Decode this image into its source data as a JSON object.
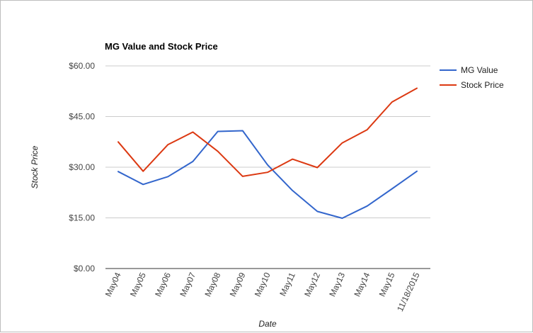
{
  "chart_data": {
    "type": "line",
    "title": "MG Value and Stock Price",
    "xlabel": "Date",
    "ylabel": "Stock Price",
    "categories": [
      "May04",
      "May05",
      "May06",
      "May07",
      "May08",
      "May09",
      "May10",
      "May11",
      "May12",
      "May13",
      "May14",
      "May15",
      "11/18/2015"
    ],
    "y_ticks": [
      "$0.00",
      "$15.00",
      "$30.00",
      "$45.00",
      "$60.00"
    ],
    "ylim": [
      0,
      60
    ],
    "grid": true,
    "legend_position": "right",
    "series": [
      {
        "name": "MG Value",
        "color": "#3366cc",
        "values": [
          28.7,
          24.9,
          27.2,
          31.7,
          40.6,
          40.8,
          30.7,
          23.1,
          16.9,
          14.9,
          18.5,
          23.6,
          28.8
        ]
      },
      {
        "name": "Stock Price",
        "color": "#dc3912",
        "values": [
          37.5,
          28.8,
          36.7,
          40.4,
          34.7,
          27.3,
          28.5,
          32.4,
          29.9,
          37.2,
          41.1,
          49.3,
          53.4
        ]
      }
    ]
  }
}
